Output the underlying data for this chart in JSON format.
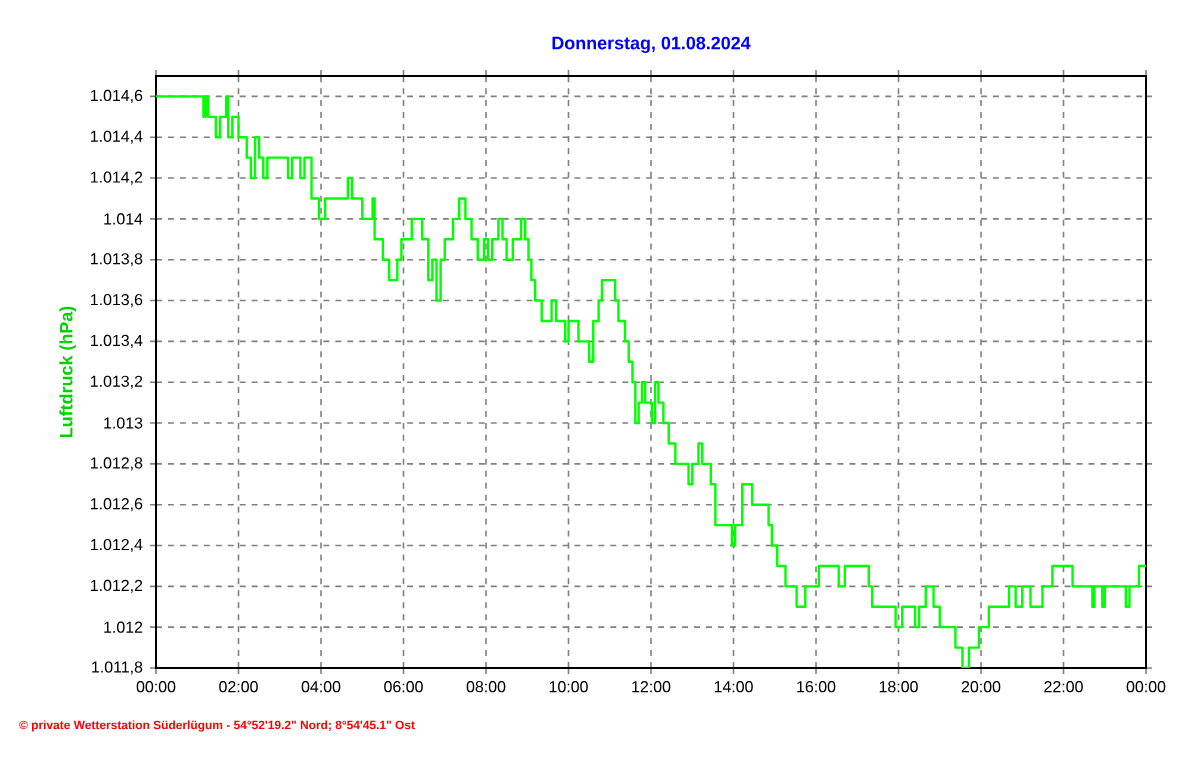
{
  "chart_data": {
    "type": "step",
    "title": "Donnerstag, 01.08.2024",
    "ylabel": "Luftdruck (hPa)",
    "xlim": [
      0,
      24
    ],
    "ylim": [
      1011.8,
      1014.7
    ],
    "xticks": [
      {
        "value": 0,
        "label": "00:00"
      },
      {
        "value": 2,
        "label": "02:00"
      },
      {
        "value": 4,
        "label": "04:00"
      },
      {
        "value": 6,
        "label": "06:00"
      },
      {
        "value": 8,
        "label": "08:00"
      },
      {
        "value": 10,
        "label": "10:00"
      },
      {
        "value": 12,
        "label": "12:00"
      },
      {
        "value": 14,
        "label": "14:00"
      },
      {
        "value": 16,
        "label": "16:00"
      },
      {
        "value": 18,
        "label": "18:00"
      },
      {
        "value": 20,
        "label": "20:00"
      },
      {
        "value": 22,
        "label": "22:00"
      },
      {
        "value": 24,
        "label": "00:00"
      }
    ],
    "yticks": [
      {
        "value": 1011.8,
        "label": "1.011,8"
      },
      {
        "value": 1012.0,
        "label": "1.012"
      },
      {
        "value": 1012.2,
        "label": "1.012,2"
      },
      {
        "value": 1012.4,
        "label": "1.012,4"
      },
      {
        "value": 1012.6,
        "label": "1.012,6"
      },
      {
        "value": 1012.8,
        "label": "1.012,8"
      },
      {
        "value": 1013.0,
        "label": "1.013"
      },
      {
        "value": 1013.2,
        "label": "1.013,2"
      },
      {
        "value": 1013.4,
        "label": "1.013,4"
      },
      {
        "value": 1013.6,
        "label": "1.013,6"
      },
      {
        "value": 1013.8,
        "label": "1.013,8"
      },
      {
        "value": 1014.0,
        "label": "1.014"
      },
      {
        "value": 1014.2,
        "label": "1.014,2"
      },
      {
        "value": 1014.4,
        "label": "1.014,4"
      },
      {
        "value": 1014.6,
        "label": "1.014,6"
      }
    ],
    "grid": true,
    "series": [
      {
        "color": "#00ff00",
        "x": [
          0,
          0.2,
          0.37,
          0.86,
          0.95,
          1.0,
          1.05,
          1.15,
          1.2,
          1.26,
          1.45,
          1.55,
          1.7,
          1.75,
          1.85,
          2.0,
          2.2,
          2.3,
          2.4,
          2.5,
          2.6,
          2.7,
          3.2,
          3.3,
          3.5,
          3.6,
          3.77,
          3.95,
          4.1,
          4.65,
          4.75,
          5.0,
          5.25,
          5.3,
          5.5,
          5.65,
          5.85,
          5.95,
          6.2,
          6.45,
          6.6,
          6.7,
          6.8,
          6.9,
          7.0,
          7.2,
          7.35,
          7.5,
          7.65,
          7.8,
          7.95,
          8.05,
          8.15,
          8.3,
          8.4,
          8.5,
          8.65,
          8.85,
          8.95,
          9.03,
          9.1,
          9.19,
          9.35,
          9.59,
          9.7,
          9.92,
          10.0,
          10.24,
          10.5,
          10.6,
          10.73,
          10.81,
          11.13,
          11.21,
          11.37,
          11.46,
          11.55,
          11.62,
          11.7,
          11.78,
          11.86,
          12.02,
          12.1,
          12.18,
          12.3,
          12.43,
          12.59,
          12.91,
          13.0,
          13.15,
          13.24,
          13.45,
          13.56,
          13.96,
          14.04,
          14.21,
          14.45,
          14.85,
          14.93,
          15.06,
          15.26,
          15.53,
          15.74,
          16.07,
          16.55,
          16.7,
          17.28,
          17.36,
          17.93,
          18.09,
          18.4,
          18.5,
          18.66,
          18.85,
          19.0,
          19.38,
          19.55,
          19.71,
          19.95,
          20.19,
          20.68,
          20.84,
          21.0,
          21.2,
          21.49,
          21.73,
          22.22,
          22.7,
          22.75,
          22.94,
          23.0,
          23.51,
          23.6,
          23.83,
          24.0
        ],
        "values": [
          1014.6,
          null,
          1014.6,
          null,
          1014.6,
          null,
          1014.6,
          1014.5,
          1014.6,
          1014.5,
          1014.4,
          1014.5,
          1014.6,
          1014.4,
          1014.5,
          1014.4,
          1014.3,
          1014.2,
          1014.4,
          1014.3,
          1014.2,
          1014.3,
          1014.2,
          1014.3,
          1014.2,
          1014.3,
          1014.1,
          1014.0,
          1014.1,
          1014.2,
          1014.1,
          1014.0,
          1014.1,
          1013.9,
          1013.8,
          1013.7,
          1013.8,
          1013.9,
          1014.0,
          1013.9,
          1013.7,
          1013.8,
          1013.6,
          1013.8,
          1013.9,
          1014.0,
          1014.1,
          1014.0,
          1013.9,
          1013.8,
          1013.9,
          1013.8,
          1013.9,
          1014.0,
          1013.9,
          1013.8,
          1013.9,
          1014.0,
          1013.9,
          1013.8,
          1013.7,
          1013.6,
          1013.5,
          1013.6,
          1013.5,
          1013.4,
          1013.5,
          1013.4,
          1013.3,
          1013.5,
          1013.6,
          1013.7,
          1013.6,
          1013.5,
          1013.4,
          1013.3,
          1013.2,
          1013.0,
          1013.1,
          1013.2,
          1013.1,
          1013.0,
          1013.2,
          1013.1,
          1013.0,
          1012.9,
          1012.8,
          1012.7,
          1012.8,
          1012.9,
          1012.8,
          1012.7,
          1012.5,
          1012.4,
          1012.5,
          1012.7,
          1012.6,
          1012.5,
          1012.4,
          1012.3,
          1012.2,
          1012.1,
          1012.2,
          1012.3,
          1012.2,
          1012.3,
          1012.2,
          1012.1,
          1012.0,
          1012.1,
          1012.0,
          1012.1,
          1012.2,
          1012.1,
          1012.0,
          1011.9,
          1011.8,
          1011.9,
          1012.0,
          1012.1,
          1012.2,
          1012.1,
          1012.2,
          1012.1,
          1012.2,
          1012.3,
          1012.2,
          1012.1,
          1012.2,
          1012.1,
          1012.2,
          1012.1,
          1012.2,
          1012.3,
          1012.3
        ]
      }
    ],
    "annotations": [
      "© private Wetterstation Süderlügum - 54°52'19.2\" Nord; 8°54'45.1\" Ost"
    ]
  }
}
